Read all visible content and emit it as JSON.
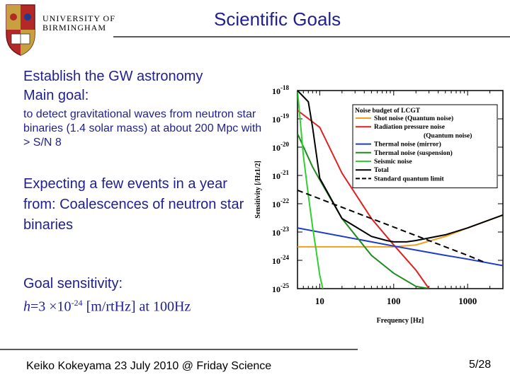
{
  "header": {
    "university_line1": "UNIVERSITY OF",
    "university_line2": "BIRMINGHAM",
    "title": "Scientific Goals"
  },
  "body": {
    "line1": "Establish the GW astronomy",
    "line2": "Main goal:",
    "detect": "to detect gravitational waves from neutron star binaries (1.4 solar mass) at about 200 Mpc with > S/N 8",
    "expect": "Expecting a few events in a year from: Coalescences of neutron star binaries",
    "goal_label": "Goal sensitivity:",
    "goal_h": "h",
    "goal_eq": "=3 ×10",
    "goal_exp": "-24",
    "goal_unit": " [m/rtHz] at 100Hz"
  },
  "footer": {
    "text": "Keiko Kokeyama 23 July 2010 @ Friday Science",
    "page": "5/28"
  },
  "chart_data": {
    "type": "line",
    "xscale": "log",
    "yscale": "log",
    "xlim": [
      5,
      3000
    ],
    "ylim": [
      1e-25,
      1e-18
    ],
    "x_ticks": [
      "10",
      "100",
      "1000"
    ],
    "y_ticks": [
      "10-18",
      "10-19",
      "10-20",
      "10-21",
      "10-22",
      "10-23",
      "10-24",
      "10-25"
    ],
    "xlabel": "Frequency [Hz]",
    "ylabel": "Sensitivity [/Hz1/2]",
    "legend_title": "Noise budget of LCGT",
    "legend_position": "top-right",
    "series": [
      {
        "name": "Shot noise (Quantum noise)",
        "color": "#f0a020",
        "dash": "solid",
        "x": [
          5,
          100,
          200,
          500,
          1000,
          3000
        ],
        "y": [
          3e-24,
          3e-24,
          3.5e-24,
          7e-24,
          1.4e-23,
          4e-23
        ]
      },
      {
        "name": "Radiation pressure noise (Quantum noise)",
        "color": "#e02020",
        "dash": "solid",
        "x": [
          5,
          10,
          20,
          50,
          100,
          200,
          300
        ],
        "y": [
          2e-19,
          5e-20,
          1.2e-21,
          3e-23,
          3.5e-24,
          4.5e-25,
          1e-25
        ]
      },
      {
        "name": "Thermal noise (mirror)",
        "color": "#1e3cc8",
        "dash": "solid",
        "x": [
          5,
          50,
          100,
          200,
          500,
          1000,
          3000
        ],
        "y": [
          1.4e-23,
          4.5e-24,
          3.2e-24,
          2.3e-24,
          1.5e-24,
          1.1e-24,
          6.5e-25
        ]
      },
      {
        "name": "Thermal noise (suspension)",
        "color": "#1e8c1e",
        "dash": "solid",
        "x": [
          5,
          8,
          10,
          20,
          50,
          100,
          200,
          300
        ],
        "y": [
          3e-20,
          2e-21,
          7e-22,
          3e-23,
          1.5e-24,
          3.5e-25,
          1.2e-25,
          1e-25
        ]
      },
      {
        "name": "Seismic noise",
        "color": "#30d030",
        "dash": "solid",
        "x": [
          5,
          6,
          7,
          8,
          9,
          10,
          11
        ],
        "y": [
          1e-18,
          5e-21,
          2e-22,
          1.5e-23,
          2e-24,
          3e-25,
          1e-25
        ]
      },
      {
        "name": "Total",
        "color": "#000000",
        "dash": "solid",
        "x": [
          5,
          7,
          8,
          10,
          20,
          50,
          80,
          100,
          150,
          200,
          500,
          1000,
          3000
        ],
        "y": [
          1e-18,
          4e-19,
          5e-20,
          8e-22,
          3e-23,
          7e-24,
          5e-24,
          4.5e-24,
          4.5e-24,
          5e-24,
          8e-24,
          1.4e-23,
          4e-23
        ]
      },
      {
        "name": "Standard quantum limit",
        "color": "#000000",
        "dash": "dashed",
        "x": [
          5,
          10,
          100,
          1000,
          1800
        ],
        "y": [
          3e-22,
          1.5e-22,
          1.5e-23,
          1.5e-24,
          8e-25
        ]
      }
    ]
  }
}
